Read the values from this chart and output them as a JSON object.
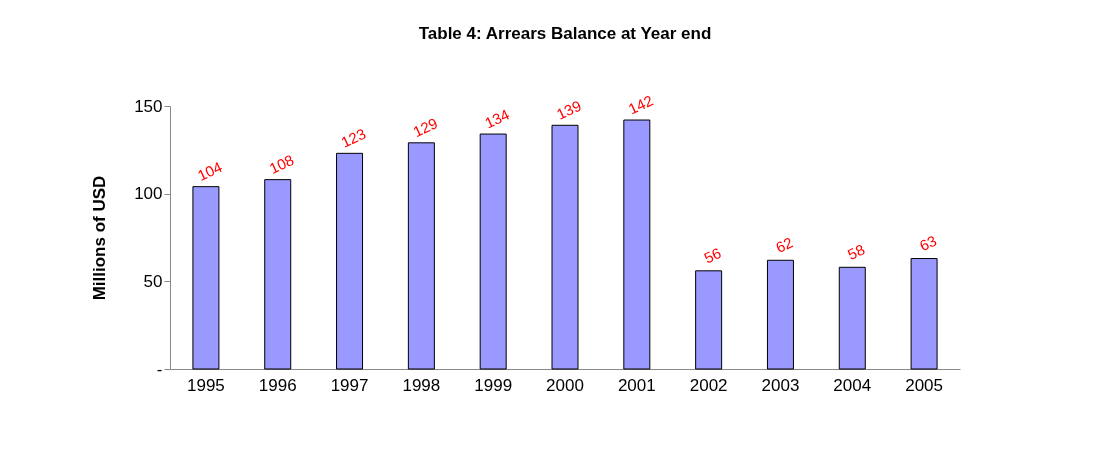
{
  "chart_data": {
    "type": "bar",
    "title": "Table 4: Arrears Balance at Year end",
    "ylabel": "Millions of USD",
    "categories": [
      "1995",
      "1996",
      "1997",
      "1998",
      "1999",
      "2000",
      "2001",
      "2002",
      "2003",
      "2004",
      "2005"
    ],
    "values": [
      104,
      108,
      123,
      129,
      134,
      139,
      142,
      56,
      62,
      58,
      63
    ],
    "color": "#9999ff",
    "ylim": [
      0,
      150
    ],
    "yticks": [
      {
        "value": 0,
        "label": "-"
      },
      50,
      100,
      150
    ],
    "data_labels": true,
    "grid": false
  }
}
